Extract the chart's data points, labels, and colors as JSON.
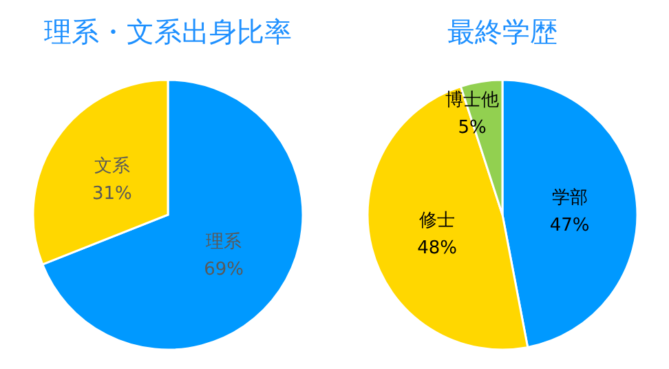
{
  "chart_data": [
    {
      "type": "pie",
      "title": "理系・文系出身比率",
      "categories": [
        "理系",
        "文系"
      ],
      "values": [
        69,
        31
      ],
      "value_labels": [
        "69%",
        "31%"
      ],
      "colors": [
        "#0099ff",
        "#ffd700"
      ]
    },
    {
      "type": "pie",
      "title": "最終学歴",
      "categories": [
        "学部",
        "修士",
        "博士他"
      ],
      "values": [
        47,
        48,
        5
      ],
      "value_labels": [
        "47%",
        "48%",
        "5%"
      ],
      "colors": [
        "#0099ff",
        "#ffd700",
        "#92d050"
      ]
    }
  ]
}
